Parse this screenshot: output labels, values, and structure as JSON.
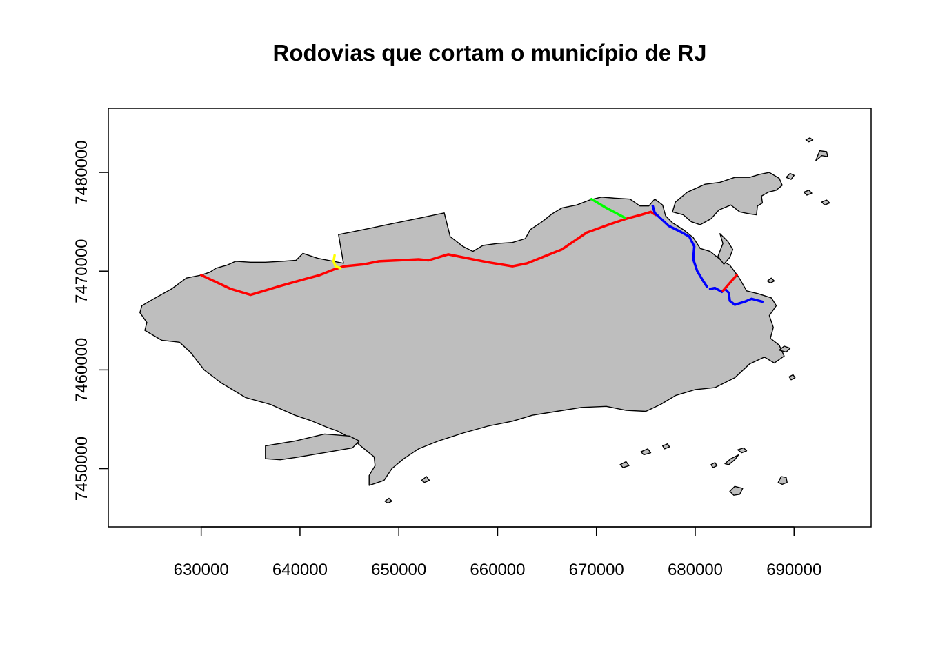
{
  "title": "Rodovias que cortam o município de RJ",
  "axes": {
    "x_ticks": [
      630000,
      640000,
      650000,
      660000,
      670000,
      680000,
      690000
    ],
    "y_ticks": [
      7450000,
      7460000,
      7470000,
      7480000
    ],
    "x_labels": [
      "630000",
      "640000",
      "650000",
      "660000",
      "670000",
      "680000",
      "690000"
    ],
    "y_labels": [
      "7450000",
      "7460000",
      "7470000",
      "7480000"
    ],
    "xlim": [
      620600,
      697800
    ],
    "ylim": [
      7444100,
      7486500
    ]
  },
  "colors": {
    "land": "#bebebe",
    "outline": "#000000",
    "red": "#ff0000",
    "blue": "#0000ff",
    "green": "#00ff00",
    "yellow": "#ffff00"
  },
  "chart_data": {
    "type": "map",
    "title": "Rodovias que cortam o município de RJ",
    "municipality": [
      [
        630000,
        7469600
      ],
      [
        628500,
        7469300
      ],
      [
        627000,
        7468200
      ],
      [
        625200,
        7467200
      ],
      [
        624000,
        7466500
      ],
      [
        623800,
        7465800
      ],
      [
        624500,
        7464800
      ],
      [
        624300,
        7464000
      ],
      [
        626000,
        7463000
      ],
      [
        627800,
        7462800
      ],
      [
        628900,
        7461800
      ],
      [
        630300,
        7460000
      ],
      [
        632000,
        7458700
      ],
      [
        634500,
        7457200
      ],
      [
        637000,
        7456500
      ],
      [
        639500,
        7455400
      ],
      [
        641000,
        7454900
      ],
      [
        642700,
        7454200
      ],
      [
        643800,
        7453800
      ],
      [
        645300,
        7453000
      ],
      [
        646500,
        7452000
      ],
      [
        647500,
        7451200
      ],
      [
        647600,
        7450300
      ],
      [
        647000,
        7449300
      ],
      [
        647000,
        7448300
      ],
      [
        648500,
        7448800
      ],
      [
        649300,
        7450000
      ],
      [
        650500,
        7451000
      ],
      [
        652000,
        7452000
      ],
      [
        654000,
        7452800
      ],
      [
        656500,
        7453600
      ],
      [
        659000,
        7454300
      ],
      [
        661500,
        7454800
      ],
      [
        663500,
        7455400
      ],
      [
        666000,
        7455800
      ],
      [
        668500,
        7456200
      ],
      [
        671000,
        7456300
      ],
      [
        673000,
        7455900
      ],
      [
        675000,
        7455800
      ],
      [
        676500,
        7456500
      ],
      [
        678000,
        7457400
      ],
      [
        680000,
        7458000
      ],
      [
        682000,
        7458200
      ],
      [
        684000,
        7459200
      ],
      [
        685500,
        7460600
      ],
      [
        687000,
        7461300
      ],
      [
        688000,
        7460700
      ],
      [
        689000,
        7461400
      ],
      [
        688500,
        7462500
      ],
      [
        687600,
        7463200
      ],
      [
        687900,
        7464300
      ],
      [
        687500,
        7465500
      ],
      [
        688200,
        7466500
      ],
      [
        687700,
        7467300
      ],
      [
        686400,
        7467700
      ],
      [
        685200,
        7468000
      ],
      [
        684400,
        7469400
      ],
      [
        683500,
        7470600
      ],
      [
        682500,
        7471200
      ],
      [
        681500,
        7472000
      ],
      [
        680500,
        7472300
      ],
      [
        679800,
        7473400
      ],
      [
        678800,
        7474200
      ],
      [
        677700,
        7474900
      ],
      [
        677000,
        7475600
      ],
      [
        676700,
        7476700
      ],
      [
        675900,
        7477300
      ],
      [
        675300,
        7476600
      ],
      [
        674400,
        7476600
      ],
      [
        673400,
        7477300
      ],
      [
        671800,
        7477400
      ],
      [
        670500,
        7477500
      ],
      [
        669300,
        7477200
      ],
      [
        668000,
        7476700
      ],
      [
        666500,
        7476400
      ],
      [
        665500,
        7475800
      ],
      [
        664500,
        7475000
      ],
      [
        663300,
        7474200
      ],
      [
        662800,
        7473300
      ],
      [
        661500,
        7472900
      ],
      [
        660000,
        7472800
      ],
      [
        658500,
        7472600
      ],
      [
        657500,
        7472000
      ],
      [
        656500,
        7472500
      ],
      [
        655200,
        7473500
      ],
      [
        654600,
        7475900
      ],
      [
        652200,
        7475400
      ],
      [
        648800,
        7474700
      ],
      [
        646400,
        7474200
      ],
      [
        643900,
        7473700
      ],
      [
        644400,
        7470800
      ],
      [
        641800,
        7471300
      ],
      [
        640300,
        7471800
      ],
      [
        639600,
        7471100
      ],
      [
        638200,
        7471000
      ],
      [
        636500,
        7470900
      ],
      [
        635000,
        7470900
      ],
      [
        633500,
        7471000
      ],
      [
        632600,
        7470600
      ],
      [
        631500,
        7470300
      ],
      [
        630900,
        7469900
      ],
      [
        630000,
        7469600
      ]
    ],
    "islands": [
      [
        [
          677700,
          7476000
        ],
        [
          678000,
          7477000
        ],
        [
          679200,
          7478000
        ],
        [
          681000,
          7478800
        ],
        [
          682500,
          7479000
        ],
        [
          684000,
          7479500
        ],
        [
          685500,
          7479500
        ],
        [
          686500,
          7479800
        ],
        [
          687500,
          7480000
        ],
        [
          688500,
          7479400
        ],
        [
          688800,
          7478700
        ],
        [
          688200,
          7478200
        ],
        [
          687400,
          7478000
        ],
        [
          686700,
          7477600
        ],
        [
          686800,
          7476900
        ],
        [
          686300,
          7476600
        ],
        [
          686200,
          7475700
        ],
        [
          685500,
          7475800
        ],
        [
          684500,
          7476000
        ],
        [
          683600,
          7476700
        ],
        [
          682400,
          7476200
        ],
        [
          681600,
          7475300
        ],
        [
          680500,
          7474700
        ],
        [
          679600,
          7475000
        ],
        [
          678800,
          7475700
        ],
        [
          677700,
          7476000
        ]
      ],
      [
        [
          682300,
          7471500
        ],
        [
          682800,
          7472800
        ],
        [
          682500,
          7473800
        ],
        [
          683300,
          7473000
        ],
        [
          683800,
          7472200
        ],
        [
          683500,
          7471400
        ],
        [
          682900,
          7470700
        ],
        [
          682300,
          7471500
        ]
      ],
      [
        [
          636500,
          7451000
        ],
        [
          636500,
          7452300
        ],
        [
          639500,
          7452800
        ],
        [
          642500,
          7453500
        ],
        [
          645000,
          7453300
        ],
        [
          646000,
          7452800
        ],
        [
          645300,
          7452100
        ],
        [
          643000,
          7451700
        ],
        [
          640000,
          7451200
        ],
        [
          638000,
          7450900
        ],
        [
          636500,
          7451000
        ]
      ],
      [
        [
          692200,
          7481200
        ],
        [
          692800,
          7481700
        ],
        [
          693400,
          7481600
        ],
        [
          693300,
          7482100
        ],
        [
          692600,
          7482200
        ],
        [
          692400,
          7481700
        ],
        [
          692200,
          7481200
        ]
      ],
      [
        [
          691200,
          7483300
        ],
        [
          691600,
          7483500
        ],
        [
          691900,
          7483300
        ],
        [
          691500,
          7483100
        ],
        [
          691200,
          7483300
        ]
      ],
      [
        [
          689200,
          7479500
        ],
        [
          689600,
          7479900
        ],
        [
          690000,
          7479700
        ],
        [
          689700,
          7479300
        ],
        [
          689200,
          7479500
        ]
      ],
      [
        [
          691000,
          7478000
        ],
        [
          691500,
          7478200
        ],
        [
          691800,
          7477900
        ],
        [
          691300,
          7477700
        ],
        [
          691000,
          7478000
        ]
      ],
      [
        [
          692800,
          7477000
        ],
        [
          693300,
          7477200
        ],
        [
          693600,
          7476900
        ],
        [
          693100,
          7476700
        ],
        [
          692800,
          7477000
        ]
      ],
      [
        [
          687300,
          7469000
        ],
        [
          687700,
          7469300
        ],
        [
          688000,
          7469000
        ],
        [
          687600,
          7468800
        ],
        [
          687300,
          7469000
        ]
      ],
      [
        [
          688500,
          7462000
        ],
        [
          689000,
          7462400
        ],
        [
          689600,
          7462200
        ],
        [
          689200,
          7461800
        ],
        [
          688500,
          7462000
        ]
      ],
      [
        [
          689500,
          7459300
        ],
        [
          689900,
          7459500
        ],
        [
          690100,
          7459200
        ],
        [
          689700,
          7459000
        ],
        [
          689500,
          7459300
        ]
      ],
      [
        [
          683000,
          7450500
        ],
        [
          683600,
          7451000
        ],
        [
          684400,
          7451400
        ],
        [
          684000,
          7450900
        ],
        [
          683400,
          7450400
        ],
        [
          683000,
          7450500
        ]
      ],
      [
        [
          683500,
          7447700
        ],
        [
          684000,
          7448200
        ],
        [
          684800,
          7448000
        ],
        [
          684500,
          7447400
        ],
        [
          683900,
          7447300
        ],
        [
          683500,
          7447700
        ]
      ],
      [
        [
          688400,
          7448600
        ],
        [
          688700,
          7449200
        ],
        [
          689200,
          7449100
        ],
        [
          689300,
          7448600
        ],
        [
          688800,
          7448400
        ],
        [
          688400,
          7448600
        ]
      ],
      [
        [
          684300,
          7451900
        ],
        [
          684900,
          7452100
        ],
        [
          685200,
          7451800
        ],
        [
          684700,
          7451600
        ],
        [
          684300,
          7451900
        ]
      ],
      [
        [
          674500,
          7451700
        ],
        [
          675200,
          7452000
        ],
        [
          675500,
          7451600
        ],
        [
          674800,
          7451400
        ],
        [
          674500,
          7451700
        ]
      ],
      [
        [
          676700,
          7452300
        ],
        [
          677200,
          7452500
        ],
        [
          677400,
          7452200
        ],
        [
          676900,
          7452000
        ],
        [
          676700,
          7452300
        ]
      ],
      [
        [
          672400,
          7450400
        ],
        [
          673000,
          7450700
        ],
        [
          673300,
          7450300
        ],
        [
          672700,
          7450100
        ],
        [
          672400,
          7450400
        ]
      ],
      [
        [
          648600,
          7446700
        ],
        [
          649000,
          7447000
        ],
        [
          649300,
          7446700
        ],
        [
          648900,
          7446500
        ],
        [
          648600,
          7446700
        ]
      ],
      [
        [
          652300,
          7448800
        ],
        [
          652800,
          7449200
        ],
        [
          653100,
          7448800
        ],
        [
          652600,
          7448600
        ],
        [
          652300,
          7448800
        ]
      ],
      [
        [
          681600,
          7450400
        ],
        [
          682000,
          7450600
        ],
        [
          682200,
          7450300
        ],
        [
          681800,
          7450100
        ],
        [
          681600,
          7450400
        ]
      ]
    ],
    "roads": [
      {
        "color": "red",
        "points": [
          [
            630000,
            7469600
          ],
          [
            633000,
            7468200
          ],
          [
            635000,
            7467600
          ],
          [
            638000,
            7468500
          ],
          [
            640500,
            7469200
          ],
          [
            642000,
            7469600
          ],
          [
            643500,
            7470200
          ],
          [
            644500,
            7470500
          ],
          [
            646500,
            7470700
          ],
          [
            648000,
            7471000
          ],
          [
            650000,
            7471100
          ],
          [
            652000,
            7471200
          ],
          [
            653000,
            7471100
          ],
          [
            655000,
            7471700
          ],
          [
            657000,
            7471300
          ],
          [
            659000,
            7470900
          ],
          [
            661500,
            7470500
          ],
          [
            663000,
            7470800
          ],
          [
            665000,
            7471600
          ],
          [
            666500,
            7472200
          ],
          [
            669000,
            7473900
          ],
          [
            671500,
            7474800
          ],
          [
            673000,
            7475300
          ],
          [
            674500,
            7475700
          ],
          [
            675500,
            7476000
          ],
          [
            676000,
            7475700
          ]
        ]
      },
      {
        "color": "green",
        "points": [
          [
            669500,
            7477300
          ],
          [
            671000,
            7476400
          ],
          [
            672900,
            7475400
          ]
        ]
      },
      {
        "color": "yellow",
        "points": [
          [
            643500,
            7471600
          ],
          [
            643400,
            7471000
          ],
          [
            643600,
            7470500
          ],
          [
            644100,
            7470300
          ]
        ]
      },
      {
        "color": "blue",
        "points": [
          [
            675700,
            7476600
          ],
          [
            675900,
            7475900
          ],
          [
            677300,
            7474600
          ],
          [
            678500,
            7474000
          ],
          [
            679400,
            7473500
          ],
          [
            679900,
            7472500
          ],
          [
            679800,
            7471200
          ],
          [
            680200,
            7470000
          ],
          [
            680800,
            7469000
          ],
          [
            681200,
            7468400
          ]
        ]
      },
      {
        "color": "blue",
        "points": [
          [
            681500,
            7468200
          ],
          [
            682000,
            7468300
          ],
          [
            682700,
            7467900
          ],
          [
            683000,
            7468200
          ],
          [
            683400,
            7467800
          ],
          [
            683500,
            7467000
          ],
          [
            684000,
            7466600
          ],
          [
            685000,
            7466900
          ],
          [
            685700,
            7467200
          ],
          [
            686800,
            7466900
          ]
        ]
      },
      {
        "color": "red",
        "points": [
          [
            682800,
            7468000
          ],
          [
            683500,
            7468800
          ],
          [
            684200,
            7469600
          ]
        ]
      }
    ]
  }
}
